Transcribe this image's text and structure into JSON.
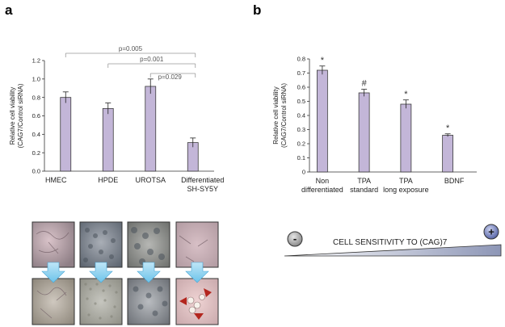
{
  "panels": {
    "a": "a",
    "b": "b"
  },
  "chart_data": [
    {
      "type": "bar",
      "categories": [
        "HMEC",
        "HPDE",
        "UROTSA",
        "Differentiated\nSH-SY5Y"
      ],
      "values": [
        0.8,
        0.68,
        0.92,
        0.31
      ],
      "errors": [
        0.06,
        0.06,
        0.08,
        0.05
      ],
      "ylabel_lines": [
        "Relative cell viability",
        "(CAG7/Control  siRNA)"
      ],
      "ylim": [
        0,
        1.2
      ],
      "yticks": [
        "0.0",
        "0.2",
        "0.4",
        "0.6",
        "0.8",
        "1.0",
        "1.2"
      ],
      "bar_color": "#c3b6d8",
      "comparisons": [
        {
          "from": 0,
          "to": 3,
          "label": "p=0.005"
        },
        {
          "from": 1,
          "to": 3,
          "label": "p=0.001"
        },
        {
          "from": 2,
          "to": 3,
          "label": "p=0.029"
        }
      ]
    },
    {
      "type": "bar",
      "categories": [
        "Non\ndifferentiated",
        "TPA\nstandard",
        "TPA\nlong exposure",
        "BDNF"
      ],
      "values": [
        0.72,
        0.56,
        0.48,
        0.26
      ],
      "errors": [
        0.03,
        0.025,
        0.03,
        0.01
      ],
      "markers": [
        "*",
        "#",
        "*",
        "*"
      ],
      "ylabel_lines": [
        "Relative cell viability",
        "(CAG7/Control  siRNA)"
      ],
      "ylim": [
        0,
        0.8
      ],
      "yticks": [
        "0",
        "0.1",
        "0.2",
        "0.3",
        "0.4",
        "0.5",
        "0.6",
        "0.7",
        "0.8"
      ],
      "bar_color": "#c3b6d8"
    }
  ],
  "sensitivity": {
    "label": "CELL SENSITIVITY TO (CAG)7",
    "minus": "-",
    "plus": "+"
  }
}
